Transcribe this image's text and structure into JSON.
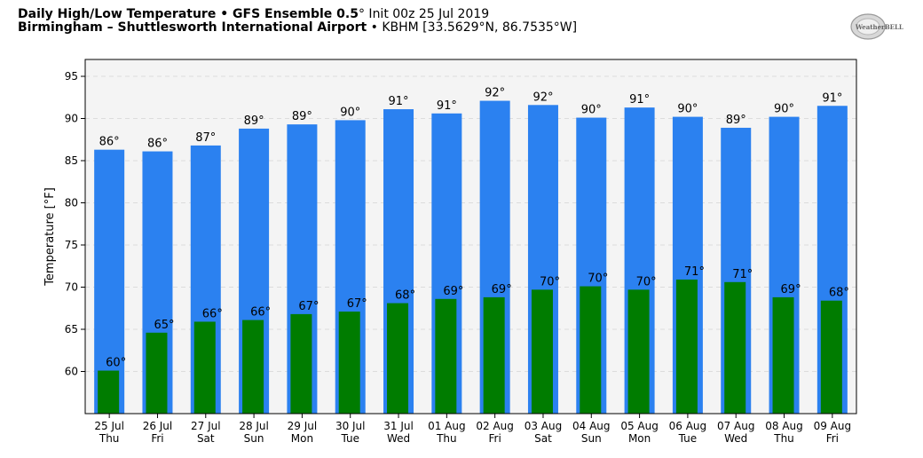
{
  "header": {
    "title_bold": "Daily High/Low Temperature • GFS Ensemble 0.5",
    "title_deg": "°",
    "title_init": " Init 00z 25 Jul 2019",
    "location_bold": "Birmingham – Shuttlesworth International Airport",
    "location_rest": " • KBHM [33.5629°N, 86.7535°W]"
  },
  "logo": {
    "text": "WeatherBELL",
    "icon": "weatherbell-logo-icon"
  },
  "colors": {
    "high": "#2b81f0",
    "low": "#007c00",
    "background": "#f4f4f4",
    "grid": "#dcdcdc"
  },
  "chart_data": {
    "type": "bar",
    "ylabel": "Temperature [°F]",
    "ylim": [
      55,
      97
    ],
    "yticks": [
      60,
      65,
      70,
      75,
      80,
      85,
      90,
      95
    ],
    "grid": true,
    "categories": [
      "25 Jul",
      "26 Jul",
      "27 Jul",
      "28 Jul",
      "29 Jul",
      "30 Jul",
      "31 Jul",
      "01 Aug",
      "02 Aug",
      "03 Aug",
      "04 Aug",
      "05 Aug",
      "06 Aug",
      "07 Aug",
      "08 Aug",
      "09 Aug"
    ],
    "weekdays": [
      "Thu",
      "Fri",
      "Sat",
      "Sun",
      "Mon",
      "Tue",
      "Wed",
      "Thu",
      "Fri",
      "Sat",
      "Sun",
      "Mon",
      "Tue",
      "Wed",
      "Thu",
      "Fri"
    ],
    "series": [
      {
        "values": [
          86.3,
          86.1,
          86.8,
          88.8,
          89.3,
          89.8,
          91.1,
          90.6,
          92.1,
          91.6,
          90.1,
          91.3,
          90.2,
          88.9,
          90.2,
          91.5
        ],
        "labels": [
          "86°",
          "86°",
          "87°",
          "89°",
          "89°",
          "90°",
          "91°",
          "91°",
          "92°",
          "92°",
          "90°",
          "91°",
          "90°",
          "89°",
          "90°",
          "91°"
        ]
      },
      {
        "values": [
          60.1,
          64.6,
          65.9,
          66.1,
          66.8,
          67.1,
          68.1,
          68.6,
          68.8,
          69.7,
          70.1,
          69.7,
          70.9,
          70.6,
          68.8,
          68.4
        ],
        "labels": [
          "60°",
          "65°",
          "66°",
          "66°",
          "67°",
          "67°",
          "68°",
          "69°",
          "69°",
          "70°",
          "70°",
          "70°",
          "71°",
          "71°",
          "69°",
          "68°"
        ]
      }
    ]
  }
}
